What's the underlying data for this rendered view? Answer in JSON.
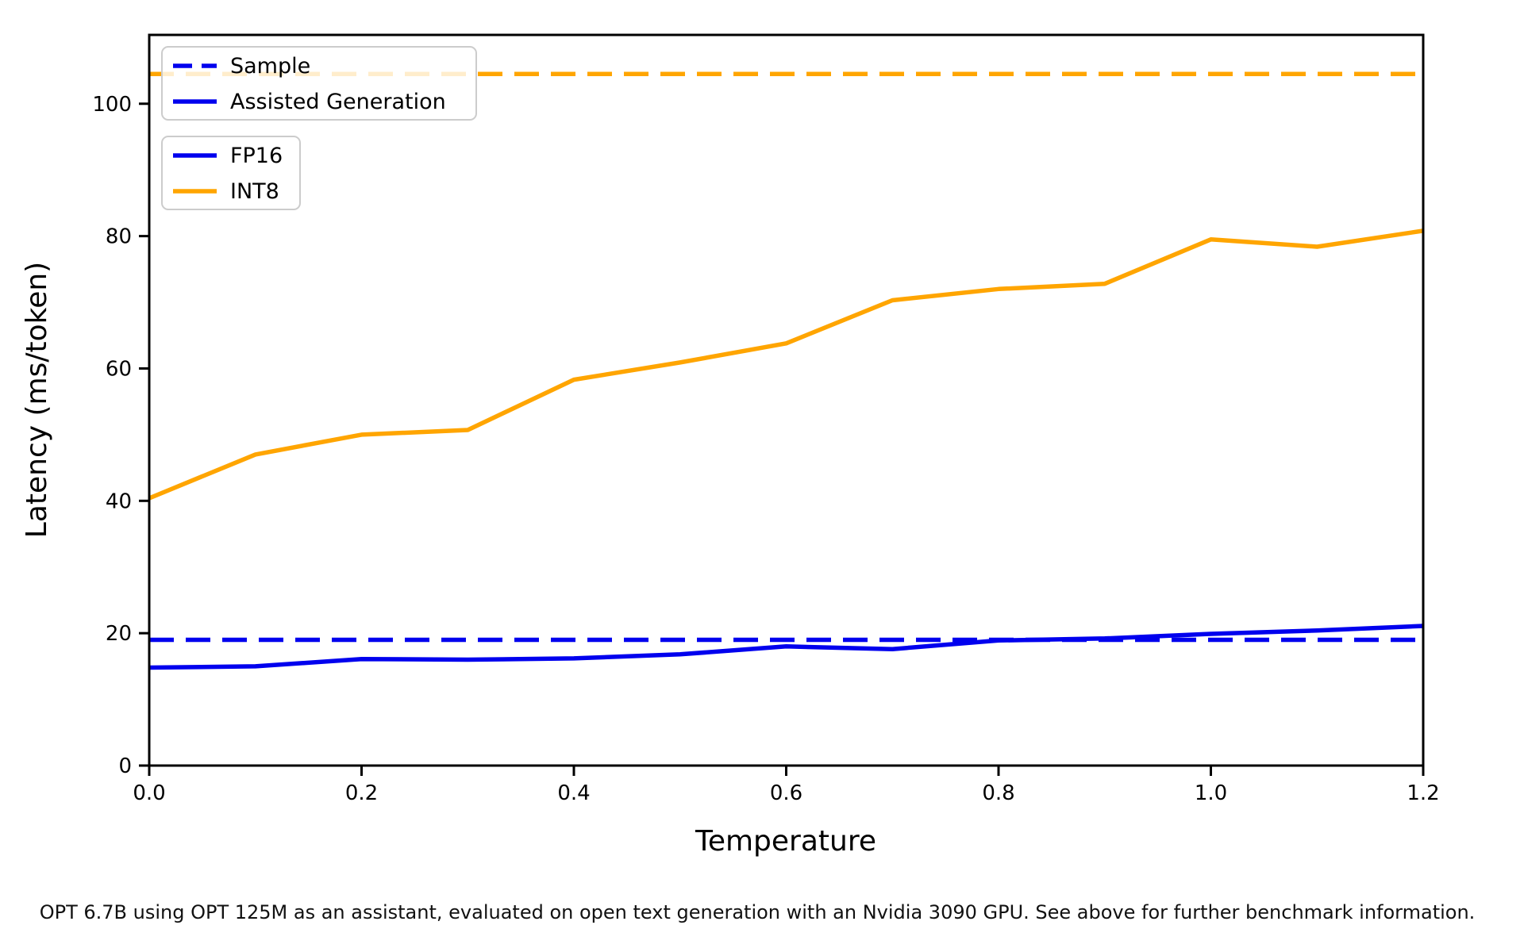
{
  "chart_data": {
    "type": "line",
    "title": "",
    "xlabel": "Temperature",
    "ylabel": "Latency (ms/token)",
    "caption": "OPT 6.7B using OPT 125M as an assistant, evaluated on open text generation with an Nvidia 3090 GPU. See above for further benchmark information.",
    "xlim": [
      0.0,
      1.2
    ],
    "ylim": [
      0,
      110.4
    ],
    "grid": false,
    "x_tick_values": [
      0.0,
      0.2,
      0.4,
      0.6,
      0.8,
      1.0,
      1.2
    ],
    "x_tick_labels": [
      "0.0",
      "0.2",
      "0.4",
      "0.6",
      "0.8",
      "1.0",
      "1.2"
    ],
    "y_tick_values": [
      0,
      20,
      40,
      60,
      80,
      100
    ],
    "y_tick_labels": [
      "0",
      "20",
      "40",
      "60",
      "80",
      "100"
    ],
    "x": [
      0.0,
      0.1,
      0.2,
      0.3,
      0.4,
      0.5,
      0.6,
      0.7,
      0.8,
      0.9,
      1.0,
      1.1,
      1.2
    ],
    "series": [
      {
        "name": "INT8 Sample",
        "color": "#ffa500",
        "style": "dashed",
        "constant": 104.5
      },
      {
        "name": "FP16 Sample",
        "color": "#0000ee",
        "style": "dashed",
        "constant": 19.0
      },
      {
        "name": "INT8 Assisted Generation",
        "color": "#ffa500",
        "style": "solid",
        "values": [
          40.4,
          47.0,
          50.0,
          50.7,
          58.3,
          60.9,
          63.8,
          70.3,
          72.0,
          72.8,
          79.5,
          78.4,
          80.8
        ]
      },
      {
        "name": "FP16 Assisted Generation",
        "color": "#0000ee",
        "style": "solid",
        "values": [
          14.8,
          15.0,
          16.1,
          16.0,
          16.2,
          16.8,
          18.0,
          17.6,
          18.9,
          19.2,
          19.9,
          20.4,
          21.1
        ]
      }
    ],
    "legends": [
      {
        "name": "generation-mode-legend",
        "entries": [
          {
            "label": "Sample",
            "style": "dashed",
            "color": "#0000ee"
          },
          {
            "label": "Assisted Generation",
            "style": "solid",
            "color": "#0000ee"
          }
        ]
      },
      {
        "name": "precision-legend",
        "entries": [
          {
            "label": "FP16",
            "style": "solid",
            "color": "#0000ee"
          },
          {
            "label": "INT8",
            "style": "solid",
            "color": "#ffa500"
          }
        ]
      }
    ],
    "colors": {
      "fp16": "#0000ee",
      "int8": "#ffa500",
      "axis": "#000000",
      "legend_border": "#cccccc"
    }
  }
}
